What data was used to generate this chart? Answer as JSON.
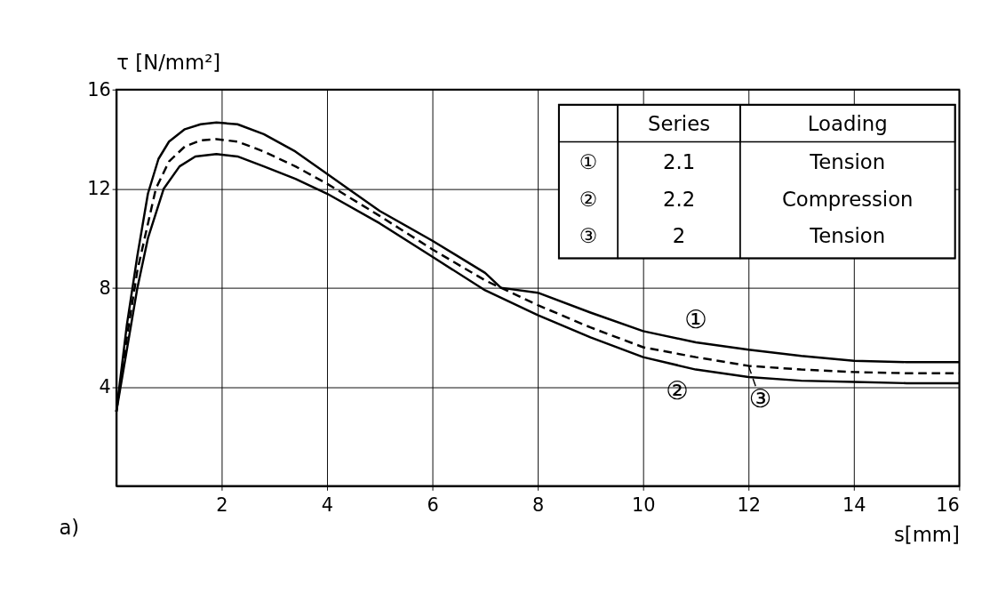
{
  "chart_data": {
    "type": "line",
    "xlabel": "s[mm]",
    "ylabel": "τ [N/mm²]",
    "xlim": [
      0,
      16
    ],
    "ylim": [
      0,
      16
    ],
    "xticks": [
      2,
      4,
      6,
      8,
      10,
      12,
      14,
      16
    ],
    "yticks": [
      4,
      8,
      12,
      16
    ],
    "grid": true,
    "marker": "none",
    "legend": "top right",
    "series": [
      {
        "name": "①",
        "color": "#000000",
        "line_style": "solid",
        "x": [
          0,
          0.2,
          0.4,
          0.6,
          0.8,
          1.0,
          1.3,
          1.6,
          1.9,
          2.3,
          2.8,
          3.4,
          4.0,
          4.4,
          5.0,
          6.0,
          7.0,
          7.3,
          8.0,
          9.0,
          10.0,
          11.0,
          12.0,
          13.0,
          14.0,
          15.0,
          16.0
        ],
        "values": [
          3.0,
          6.5,
          9.3,
          11.8,
          13.2,
          13.9,
          14.4,
          14.6,
          14.67,
          14.6,
          14.2,
          13.5,
          12.6,
          12.0,
          11.1,
          9.9,
          8.6,
          8.0,
          7.8,
          7.0,
          6.25,
          5.8,
          5.5,
          5.25,
          5.05,
          5.0,
          5.0
        ]
      },
      {
        "name": "②",
        "color": "#000000",
        "line_style": "solid",
        "x": [
          0,
          0.2,
          0.4,
          0.6,
          0.9,
          1.2,
          1.5,
          1.9,
          2.3,
          2.8,
          3.4,
          4.0,
          5.0,
          6.0,
          7.0,
          8.0,
          9.0,
          10.0,
          11.0,
          12.0,
          13.0,
          14.0,
          15.0,
          16.0
        ],
        "values": [
          3.0,
          5.5,
          8.0,
          10.0,
          12.0,
          12.9,
          13.3,
          13.4,
          13.3,
          12.9,
          12.4,
          11.8,
          10.6,
          9.25,
          7.9,
          6.9,
          6.0,
          5.2,
          4.7,
          4.4,
          4.25,
          4.2,
          4.15,
          4.15
        ]
      },
      {
        "name": "③",
        "color": "#000000",
        "line_style": "dashed",
        "x": [
          0,
          0.2,
          0.4,
          0.75,
          1.0,
          1.3,
          1.6,
          1.9,
          2.3,
          2.8,
          3.4,
          4.0,
          5.0,
          6.0,
          7.0,
          8.0,
          9.0,
          10.0,
          11.0,
          12.0,
          13.0,
          14.0,
          15.0,
          16.0
        ],
        "values": [
          3.0,
          6.0,
          8.7,
          12.0,
          13.1,
          13.7,
          13.95,
          14.0,
          13.9,
          13.5,
          12.9,
          12.2,
          10.9,
          9.55,
          8.3,
          7.3,
          6.4,
          5.6,
          5.2,
          4.85,
          4.7,
          4.6,
          4.55,
          4.55
        ]
      }
    ],
    "annotations": [
      "Series",
      "Loading",
      "2.1",
      "Tension",
      "2.2",
      "Compression",
      "2",
      "Tension",
      "a)"
    ]
  }
}
